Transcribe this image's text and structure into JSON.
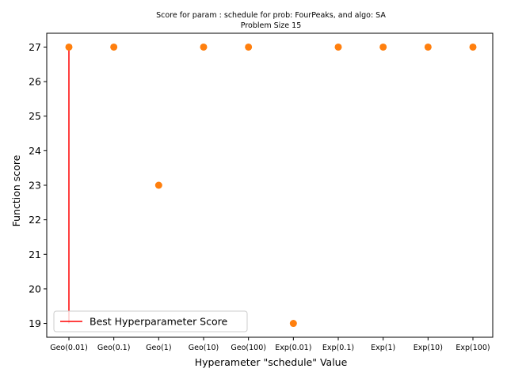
{
  "chart_data": {
    "type": "scatter",
    "title_line1": "Score for param : schedule for prob: FourPeaks, and algo: SA",
    "title_line2": "Problem Size 15",
    "xlabel": "Hyperameter \"schedule\" Value",
    "ylabel": "Function score",
    "categories": [
      "Geo(0.01)",
      "Geo(0.1)",
      "Geo(1)",
      "Geo(10)",
      "Geo(100)",
      "Exp(0.01)",
      "Exp(0.1)",
      "Exp(1)",
      "Exp(10)",
      "Exp(100)"
    ],
    "values": [
      27,
      27,
      23,
      27,
      27,
      19,
      27,
      27,
      27,
      27
    ],
    "ylim": [
      18.6,
      27.4
    ],
    "yticks": [
      19,
      20,
      21,
      22,
      23,
      24,
      25,
      26,
      27
    ],
    "best_line": {
      "category": "Geo(0.01)",
      "y_from": 19,
      "y_to": 27,
      "label": "Best Hyperparameter Score",
      "color": "#ff0000"
    },
    "point_color": "#ff7f0e",
    "grid": false,
    "legend_position": "lower left"
  }
}
